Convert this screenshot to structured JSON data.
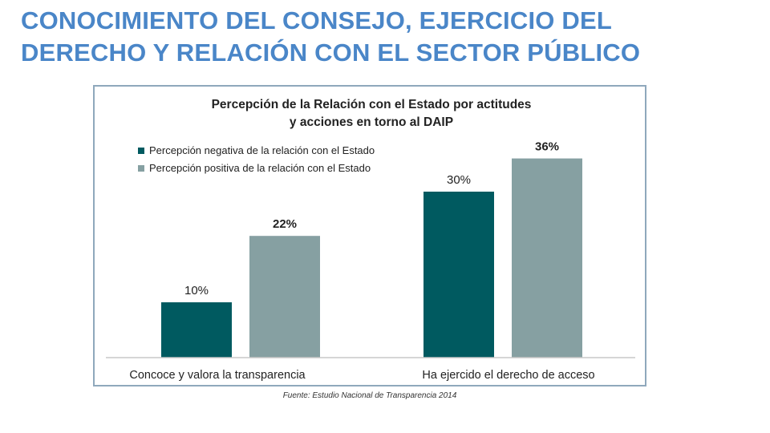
{
  "slide": {
    "title_line1": "CONOCIMIENTO DEL CONSEJO, EJERCICIO DEL",
    "title_line2": "DERECHO Y RELACIÓN CON EL SECTOR PÚBLICO",
    "source": "Fuente: Estudio Nacional de Transparencia 2014"
  },
  "colors": {
    "title": "#4a86c8",
    "negative": "#005a60",
    "positive": "#86a0a2",
    "frame": "#8fa8bc"
  },
  "chart_data": {
    "type": "bar",
    "title_line1": "Percepción de la Relación con el Estado por actitudes",
    "title_line2": "y acciones en torno al DAIP",
    "categories": [
      "Concoce y valora la transparencia",
      "Ha ejercido el derecho de acceso"
    ],
    "series": [
      {
        "name": "Percepción negativa de la relación con el Estado",
        "values": [
          10,
          30
        ],
        "labels": [
          "10%",
          "30%"
        ],
        "label_bold": false
      },
      {
        "name": "Percepción positiva de la relación con el Estado",
        "values": [
          22,
          36
        ],
        "labels": [
          "22%",
          "36%"
        ],
        "label_bold": true
      }
    ],
    "ylim": [
      0,
      40
    ],
    "legend_position": "top-left",
    "grid": false
  }
}
